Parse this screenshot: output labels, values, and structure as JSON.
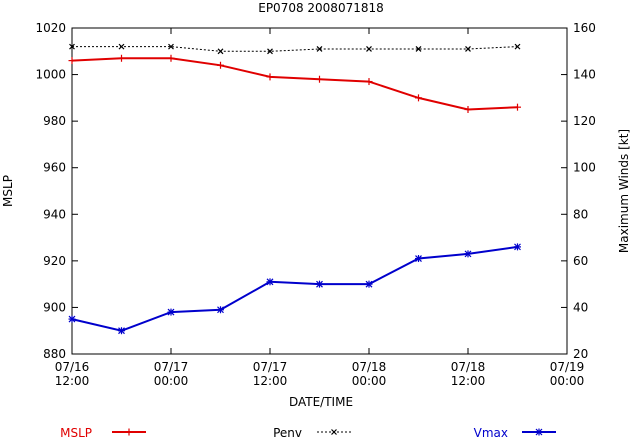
{
  "chart_data": {
    "type": "line",
    "title": "EP0708 2008071818",
    "xlabel": "DATE/TIME",
    "ylabel_left": "MSLP",
    "ylabel_right": "Maximum Winds [kt]",
    "x_ticks": [
      {
        "t": 0,
        "line1": "07/16",
        "line2": "12:00"
      },
      {
        "t": 12,
        "line1": "07/17",
        "line2": "00:00"
      },
      {
        "t": 24,
        "line1": "07/17",
        "line2": "12:00"
      },
      {
        "t": 36,
        "line1": "07/18",
        "line2": "00:00"
      },
      {
        "t": 48,
        "line1": "07/18",
        "line2": "12:00"
      },
      {
        "t": 60,
        "line1": "07/19",
        "line2": "00:00"
      }
    ],
    "x_range_hours": [
      0,
      60
    ],
    "y_left": {
      "min": 880,
      "max": 1020,
      "ticks": [
        880,
        900,
        920,
        940,
        960,
        980,
        1000,
        1020
      ]
    },
    "y_right": {
      "min": 20,
      "max": 160,
      "ticks": [
        20,
        40,
        60,
        80,
        100,
        120,
        140,
        160
      ]
    },
    "series": [
      {
        "name": "MSLP",
        "axis": "left",
        "color": "#e00000",
        "marker": "plus",
        "width": 2,
        "x": [
          0,
          6,
          12,
          18,
          24,
          30,
          36,
          42,
          48,
          54
        ],
        "values": [
          1006,
          1007,
          1007,
          1004,
          999,
          998,
          997,
          990,
          985,
          986
        ]
      },
      {
        "name": "Penv",
        "axis": "left",
        "color": "#000000",
        "marker": "cross",
        "width": 1,
        "dashed": true,
        "x": [
          0,
          6,
          12,
          18,
          24,
          30,
          36,
          42,
          48,
          54
        ],
        "values": [
          1012,
          1012,
          1012,
          1010,
          1010,
          1011,
          1011,
          1011,
          1011,
          1012
        ]
      },
      {
        "name": "Vmax",
        "axis": "right",
        "color": "#0000cc",
        "marker": "star",
        "width": 2,
        "x": [
          0,
          6,
          12,
          18,
          24,
          30,
          36,
          42,
          48,
          54
        ],
        "values": [
          35,
          30,
          38,
          39,
          51,
          50,
          50,
          61,
          63,
          66
        ]
      }
    ],
    "legend_position": "bottom"
  }
}
